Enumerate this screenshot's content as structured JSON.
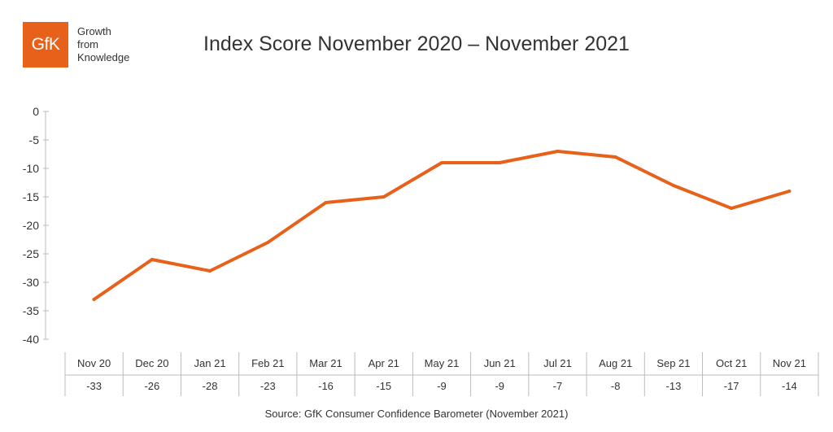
{
  "logo": {
    "mark": "GfK",
    "tagline": [
      "Growth",
      "from",
      "Knowledge"
    ],
    "color": "#e8611a"
  },
  "source": "Source: GfK Consumer Confidence Barometer (November 2021)",
  "chart_data": {
    "type": "line",
    "title": "Index Score November 2020 – November 2021",
    "xlabel": "",
    "ylabel": "",
    "categories": [
      "Nov 20",
      "Dec 20",
      "Jan 21",
      "Feb 21",
      "Mar 21",
      "Apr 21",
      "May 21",
      "Jun 21",
      "Jul 21",
      "Aug 21",
      "Sep 21",
      "Oct 21",
      "Nov 21"
    ],
    "series": [
      {
        "values": [
          -33,
          -26,
          -28,
          -23,
          -16,
          -15,
          -9,
          -9,
          -7,
          -8,
          -13,
          -17,
          -14
        ],
        "color": "#e8611a"
      }
    ],
    "data_table": [
      "-33",
      "-26",
      "-28",
      "-23",
      "-16",
      "-15",
      "-9",
      "-9",
      "-7",
      "-8",
      "-13",
      "-17",
      "-14"
    ],
    "ylim": [
      -40,
      0
    ],
    "yticks": [
      0,
      -5,
      -10,
      -15,
      -20,
      -25,
      -30,
      -35,
      -40
    ],
    "grid": false,
    "legend": "none"
  }
}
